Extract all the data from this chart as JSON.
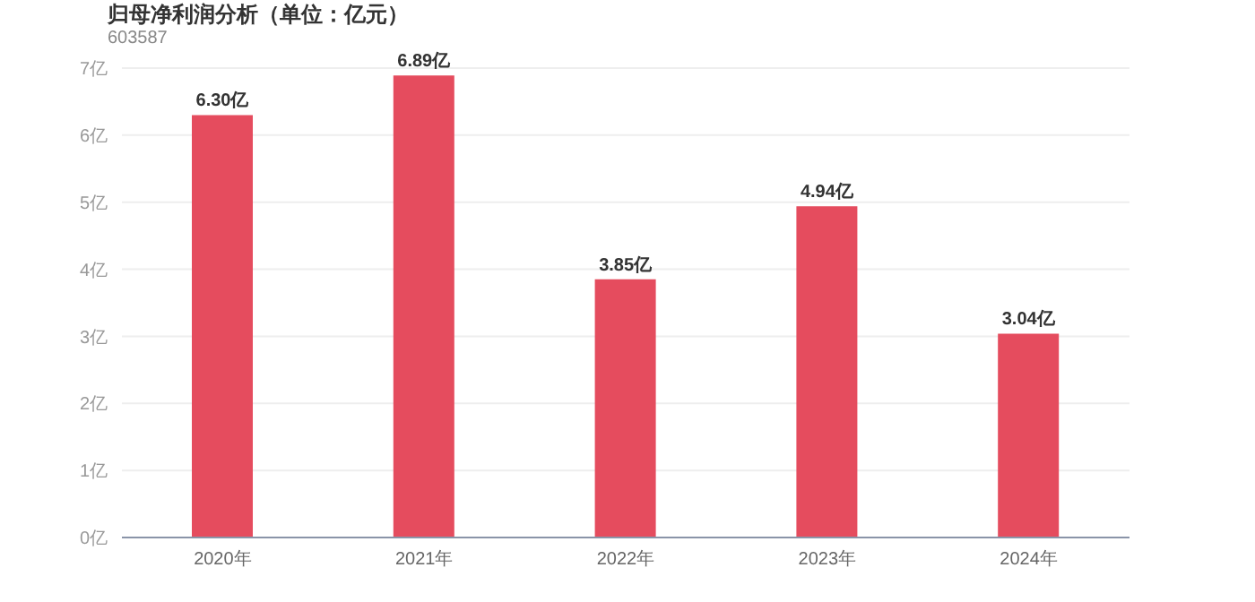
{
  "chart_data": {
    "type": "bar",
    "title": "归母净利润分析（单位：亿元）",
    "subtitle": "603587",
    "categories": [
      "2020年",
      "2021年",
      "2022年",
      "2023年",
      "2024年"
    ],
    "values": [
      6.3,
      6.89,
      3.85,
      4.94,
      3.04
    ],
    "color": "#e54c5e",
    "value_labels": [
      "6.30亿",
      "6.89亿",
      "3.85亿",
      "4.94亿",
      "3.04亿"
    ],
    "ylim": [
      0,
      7
    ],
    "yticks": [
      {
        "value": 0,
        "label": "0亿"
      },
      {
        "value": 1,
        "label": "1亿"
      },
      {
        "value": 2,
        "label": "2亿"
      },
      {
        "value": 3,
        "label": "3亿"
      },
      {
        "value": 4,
        "label": "4亿"
      },
      {
        "value": 5,
        "label": "5亿"
      },
      {
        "value": 6,
        "label": "6亿"
      },
      {
        "value": 7,
        "label": "7亿"
      }
    ],
    "grid": "y",
    "legend": false
  }
}
